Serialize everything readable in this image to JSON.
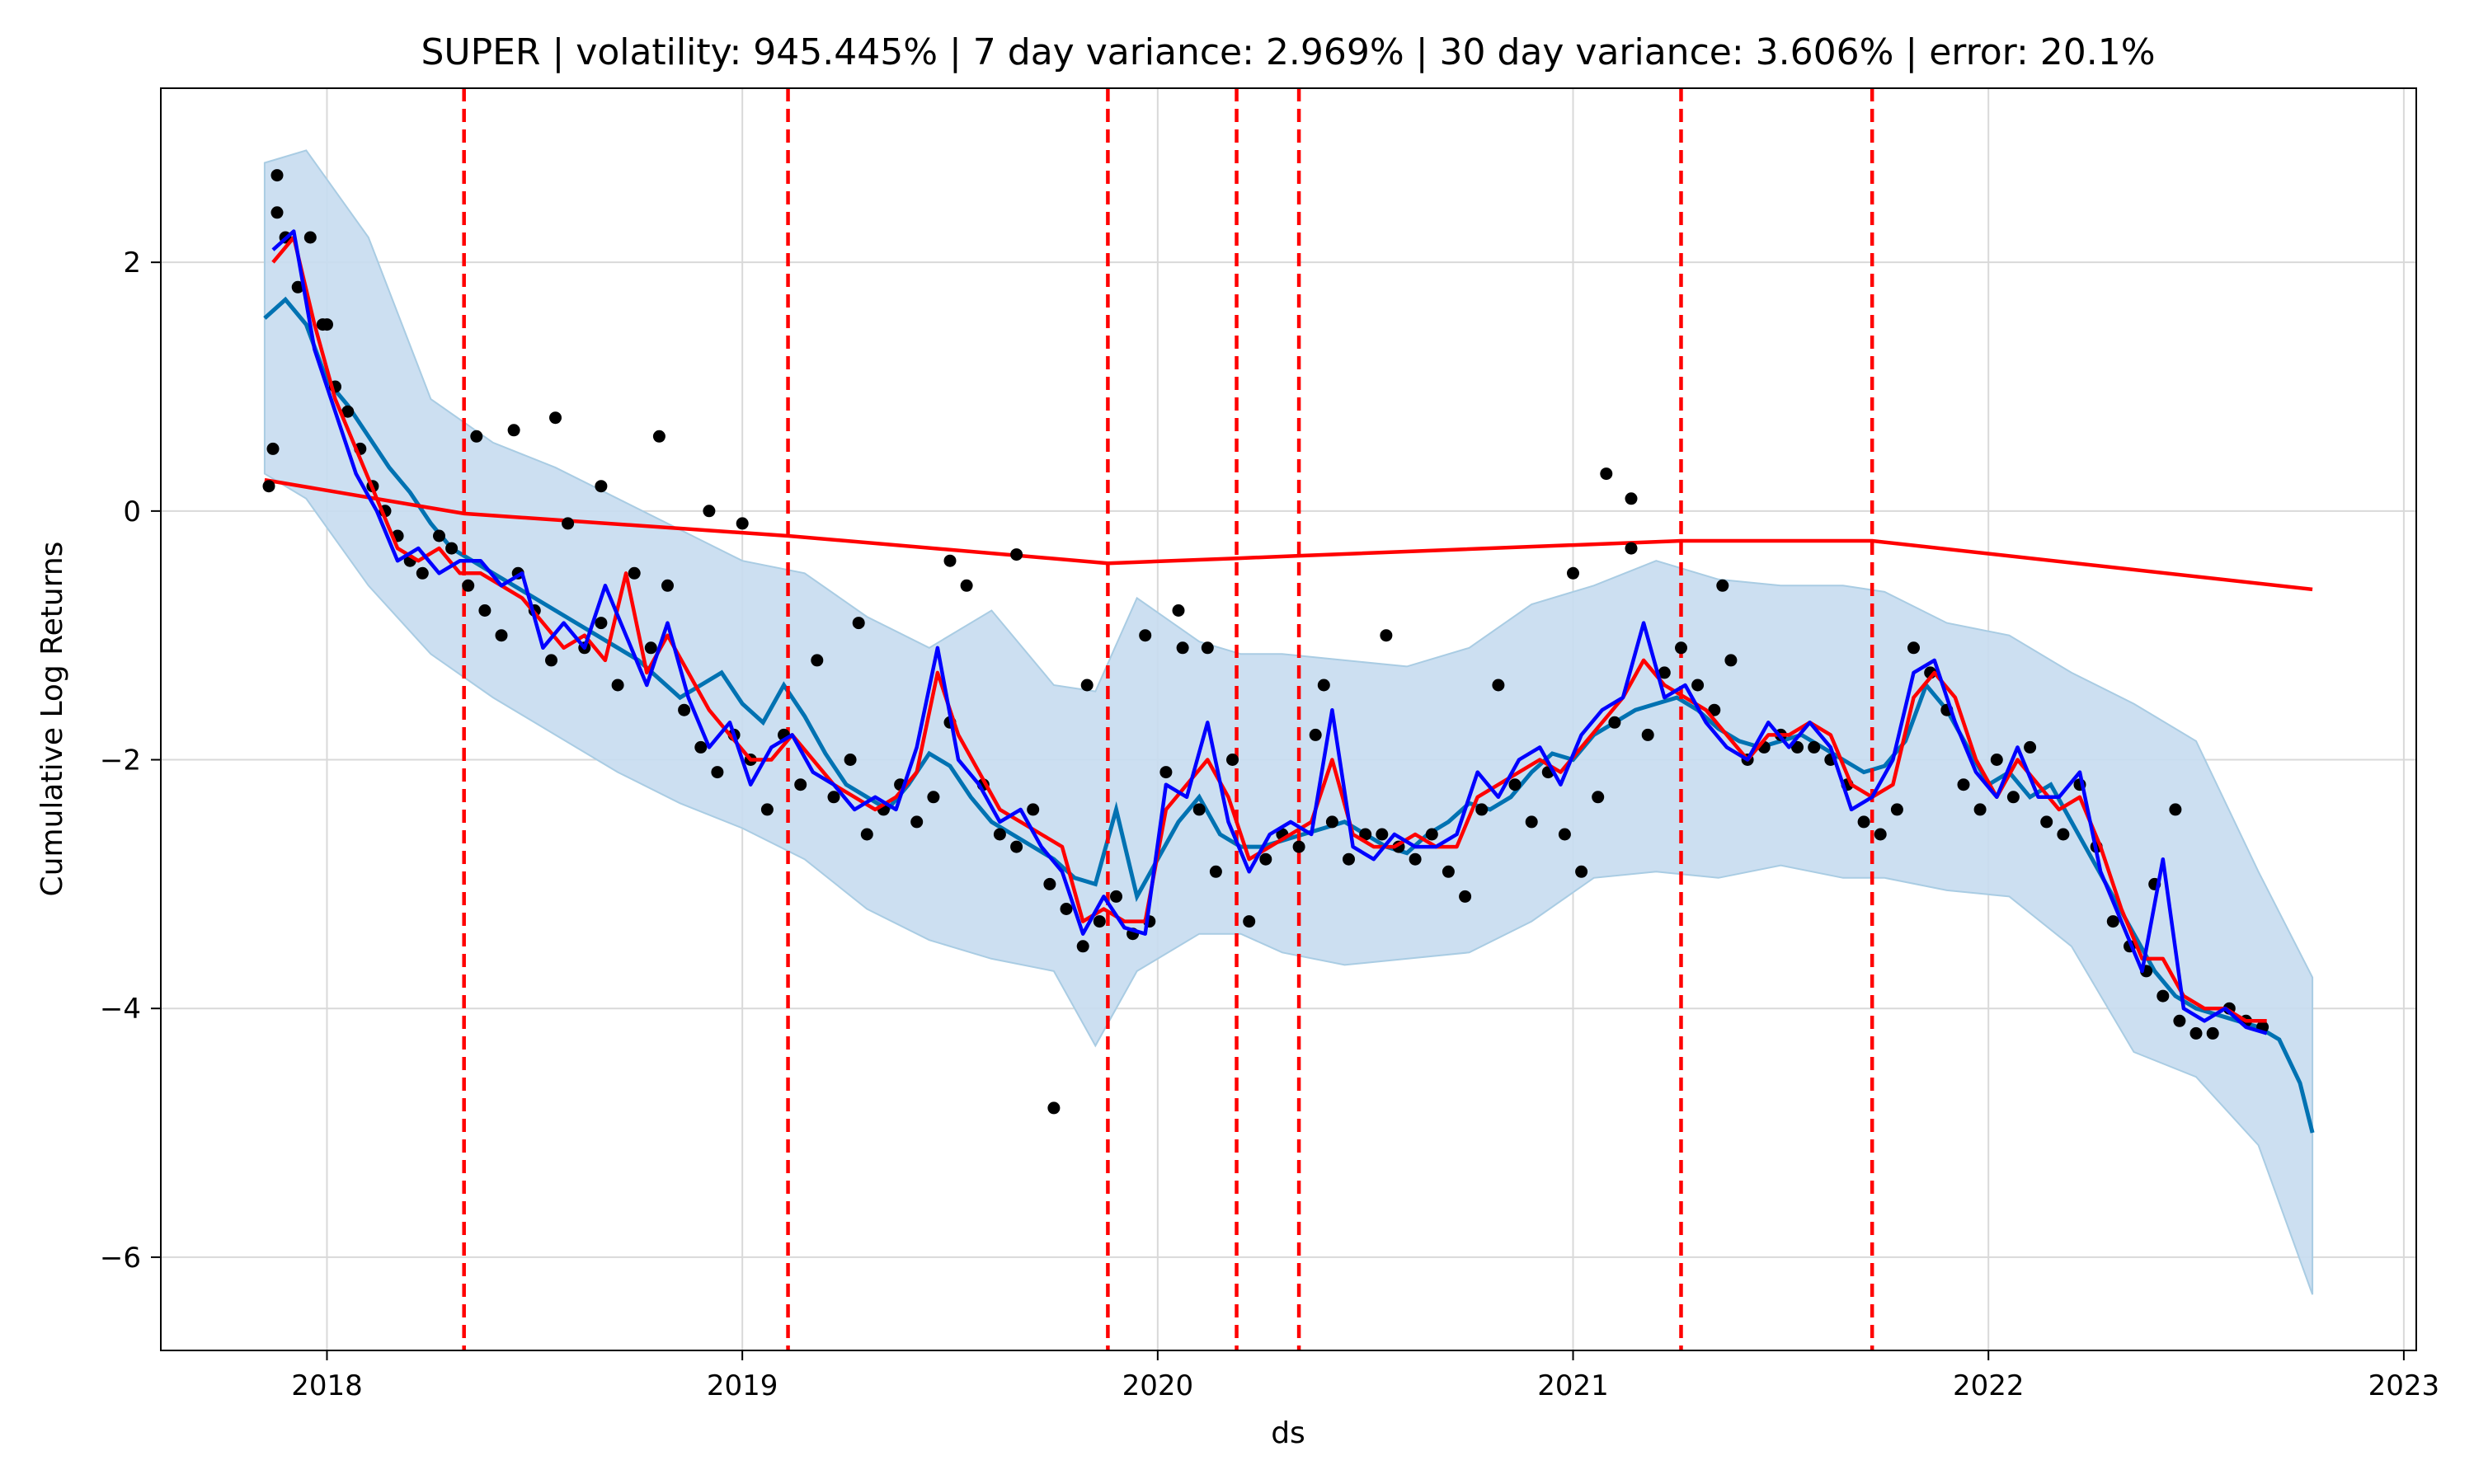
{
  "chart_data": {
    "type": "line",
    "title": "SUPER | volatility: 945.445% | 7 day variance: 2.969% | 30 day variance: 3.606% | error: 20.1%",
    "xlabel": "ds",
    "ylabel": "Cumulative Log Returns",
    "xlim": [
      2017.6,
      2023.03
    ],
    "ylim": [
      -6.75,
      3.4
    ],
    "x_ticks": [
      2018,
      2019,
      2020,
      2021,
      2022,
      2023
    ],
    "x_tick_labels": [
      "2018",
      "2019",
      "2020",
      "2021",
      "2022",
      "2023"
    ],
    "y_ticks": [
      -6,
      -4,
      -2,
      0,
      2
    ],
    "y_tick_labels": [
      "−6",
      "−4",
      "−2",
      "0",
      "2"
    ],
    "grid": true,
    "colors": {
      "band": "#c6dbef",
      "band_edge": "#a9cce3",
      "forecast": "#0072b2",
      "trend": "#ff0000",
      "ma_red": "#ff0000",
      "ma_blue": "#0000ff",
      "observed": "#000000",
      "changepoint": "#ff0000"
    },
    "changepoints": [
      2018.33,
      2019.11,
      2019.88,
      2020.19,
      2020.34,
      2021.26,
      2021.72
    ],
    "trend": {
      "x": [
        2017.85,
        2018.33,
        2019.11,
        2019.88,
        2020.19,
        2020.34,
        2021.26,
        2021.72,
        2022.78
      ],
      "y": [
        0.25,
        -0.02,
        -0.2,
        -0.42,
        -0.38,
        -0.36,
        -0.24,
        -0.24,
        -0.63
      ]
    },
    "forecast": {
      "x": [
        2017.85,
        2017.9,
        2017.95,
        2018.0,
        2018.05,
        2018.1,
        2018.15,
        2018.2,
        2018.25,
        2018.3,
        2018.35,
        2018.4,
        2018.45,
        2018.5,
        2018.55,
        2018.6,
        2018.65,
        2018.7,
        2018.75,
        2018.8,
        2018.85,
        2018.9,
        2018.95,
        2019.0,
        2019.05,
        2019.1,
        2019.15,
        2019.2,
        2019.25,
        2019.3,
        2019.35,
        2019.4,
        2019.45,
        2019.5,
        2019.55,
        2019.6,
        2019.65,
        2019.7,
        2019.75,
        2019.8,
        2019.85,
        2019.9,
        2019.95,
        2020.0,
        2020.05,
        2020.1,
        2020.15,
        2020.2,
        2020.25,
        2020.3,
        2020.35,
        2020.4,
        2020.45,
        2020.5,
        2020.55,
        2020.6,
        2020.65,
        2020.7,
        2020.75,
        2020.8,
        2020.85,
        2020.9,
        2020.95,
        2021.0,
        2021.05,
        2021.1,
        2021.15,
        2021.2,
        2021.25,
        2021.3,
        2021.35,
        2021.4,
        2021.45,
        2021.5,
        2021.55,
        2021.6,
        2021.65,
        2021.7,
        2021.75,
        2021.8,
        2021.85,
        2021.9,
        2021.95,
        2022.0,
        2022.05,
        2022.1,
        2022.15,
        2022.2,
        2022.25,
        2022.3,
        2022.35,
        2022.4,
        2022.45,
        2022.5,
        2022.55,
        2022.6,
        2022.65,
        2022.7,
        2022.75,
        2022.78
      ],
      "y": [
        1.55,
        1.7,
        1.5,
        1.05,
        0.85,
        0.6,
        0.35,
        0.15,
        -0.1,
        -0.3,
        -0.4,
        -0.5,
        -0.6,
        -0.7,
        -0.8,
        -0.9,
        -1.0,
        -1.1,
        -1.2,
        -1.35,
        -1.5,
        -1.4,
        -1.3,
        -1.55,
        -1.7,
        -1.4,
        -1.65,
        -1.95,
        -2.2,
        -2.3,
        -2.4,
        -2.2,
        -1.95,
        -2.05,
        -2.3,
        -2.5,
        -2.6,
        -2.7,
        -2.8,
        -2.95,
        -3.0,
        -2.4,
        -3.1,
        -2.8,
        -2.5,
        -2.3,
        -2.6,
        -2.7,
        -2.7,
        -2.65,
        -2.6,
        -2.55,
        -2.5,
        -2.6,
        -2.7,
        -2.75,
        -2.6,
        -2.5,
        -2.35,
        -2.4,
        -2.3,
        -2.1,
        -1.95,
        -2.0,
        -1.8,
        -1.7,
        -1.6,
        -1.55,
        -1.5,
        -1.6,
        -1.75,
        -1.85,
        -1.9,
        -1.85,
        -1.8,
        -1.9,
        -2.0,
        -2.1,
        -2.05,
        -1.85,
        -1.4,
        -1.6,
        -1.9,
        -2.2,
        -2.1,
        -2.3,
        -2.2,
        -2.5,
        -2.8,
        -3.1,
        -3.4,
        -3.7,
        -3.9,
        -4.0,
        -4.05,
        -4.1,
        -4.15,
        -4.25,
        -4.6,
        -5.0
      ]
    },
    "band": {
      "x": [
        2017.85,
        2017.95,
        2018.1,
        2018.25,
        2018.4,
        2018.55,
        2018.7,
        2018.85,
        2019.0,
        2019.15,
        2019.3,
        2019.45,
        2019.6,
        2019.75,
        2019.85,
        2019.95,
        2020.1,
        2020.2,
        2020.3,
        2020.45,
        2020.6,
        2020.75,
        2020.9,
        2021.05,
        2021.2,
        2021.35,
        2021.5,
        2021.65,
        2021.75,
        2021.9,
        2022.05,
        2022.2,
        2022.35,
        2022.5,
        2022.65,
        2022.78
      ],
      "upper": [
        2.8,
        2.9,
        2.2,
        0.9,
        0.55,
        0.35,
        0.1,
        -0.15,
        -0.4,
        -0.5,
        -0.85,
        -1.1,
        -0.8,
        -1.4,
        -1.45,
        -0.7,
        -1.05,
        -1.15,
        -1.15,
        -1.2,
        -1.25,
        -1.1,
        -0.75,
        -0.6,
        -0.4,
        -0.55,
        -0.6,
        -0.6,
        -0.65,
        -0.9,
        -1.0,
        -1.3,
        -1.55,
        -1.85,
        -2.9,
        -3.75
      ],
      "lower": [
        0.3,
        0.1,
        -0.6,
        -1.15,
        -1.5,
        -1.8,
        -2.1,
        -2.35,
        -2.55,
        -2.8,
        -3.2,
        -3.45,
        -3.6,
        -3.7,
        -4.3,
        -3.7,
        -3.4,
        -3.4,
        -3.55,
        -3.65,
        -3.6,
        -3.55,
        -3.3,
        -2.95,
        -2.9,
        -2.95,
        -2.85,
        -2.95,
        -2.95,
        -3.05,
        -3.1,
        -3.5,
        -4.35,
        -4.55,
        -5.1,
        -6.3
      ]
    },
    "series": [
      {
        "name": "",
        "x": [
          2017.87,
          2017.92,
          2017.97,
          2018.02,
          2018.07,
          2018.12,
          2018.17,
          2018.22,
          2018.27,
          2018.32,
          2018.37,
          2018.42,
          2018.47,
          2018.52,
          2018.57,
          2018.62,
          2018.67,
          2018.72,
          2018.77,
          2018.82,
          2018.87,
          2018.92,
          2018.97,
          2019.02,
          2019.07,
          2019.12,
          2019.17,
          2019.22,
          2019.27,
          2019.32,
          2019.37,
          2019.42,
          2019.47,
          2019.52,
          2019.57,
          2019.62,
          2019.67,
          2019.72,
          2019.77,
          2019.82,
          2019.87,
          2019.92,
          2019.97,
          2020.02,
          2020.07,
          2020.12,
          2020.17,
          2020.22,
          2020.27,
          2020.32,
          2020.37,
          2020.42,
          2020.47,
          2020.52,
          2020.57,
          2020.62,
          2020.67,
          2020.72,
          2020.77,
          2020.82,
          2020.87,
          2020.92,
          2020.97,
          2021.02,
          2021.07,
          2021.12,
          2021.17,
          2021.22,
          2021.27,
          2021.32,
          2021.37,
          2021.42,
          2021.47,
          2021.52,
          2021.57,
          2021.62,
          2021.67,
          2021.72,
          2021.77,
          2021.82,
          2021.87,
          2021.92,
          2021.97,
          2022.02,
          2022.07,
          2022.12,
          2022.17,
          2022.22,
          2022.27,
          2022.32,
          2022.37,
          2022.42,
          2022.47,
          2022.52,
          2022.57,
          2022.62,
          2022.67
        ],
        "y": [
          2.0,
          2.2,
          1.5,
          0.9,
          0.5,
          0.1,
          -0.3,
          -0.4,
          -0.3,
          -0.5,
          -0.5,
          -0.6,
          -0.7,
          -0.9,
          -1.1,
          -1.0,
          -1.2,
          -0.5,
          -1.3,
          -1.0,
          -1.3,
          -1.6,
          -1.8,
          -2.0,
          -2.0,
          -1.8,
          -2.0,
          -2.2,
          -2.3,
          -2.4,
          -2.3,
          -2.1,
          -1.3,
          -1.8,
          -2.1,
          -2.4,
          -2.5,
          -2.6,
          -2.7,
          -3.3,
          -3.2,
          -3.3,
          -3.3,
          -2.4,
          -2.2,
          -2.0,
          -2.3,
          -2.8,
          -2.7,
          -2.6,
          -2.5,
          -2.0,
          -2.6,
          -2.7,
          -2.7,
          -2.6,
          -2.7,
          -2.7,
          -2.3,
          -2.2,
          -2.1,
          -2.0,
          -2.1,
          -1.9,
          -1.7,
          -1.5,
          -1.2,
          -1.4,
          -1.5,
          -1.6,
          -1.8,
          -2.0,
          -1.8,
          -1.8,
          -1.7,
          -1.8,
          -2.2,
          -2.3,
          -2.2,
          -1.5,
          -1.3,
          -1.5,
          -2.0,
          -2.3,
          -2.0,
          -2.2,
          -2.4,
          -2.3,
          -2.7,
          -3.2,
          -3.6,
          -3.6,
          -3.9,
          -4.0,
          -4.0,
          -4.1,
          -4.1
        ]
      },
      {
        "name": "",
        "x": [
          2017.87,
          2017.92,
          2017.97,
          2018.02,
          2018.07,
          2018.12,
          2018.17,
          2018.22,
          2018.27,
          2018.32,
          2018.37,
          2018.42,
          2018.47,
          2018.52,
          2018.57,
          2018.62,
          2018.67,
          2018.72,
          2018.77,
          2018.82,
          2018.87,
          2018.92,
          2018.97,
          2019.02,
          2019.07,
          2019.12,
          2019.17,
          2019.22,
          2019.27,
          2019.32,
          2019.37,
          2019.42,
          2019.47,
          2019.52,
          2019.57,
          2019.62,
          2019.67,
          2019.72,
          2019.77,
          2019.82,
          2019.87,
          2019.92,
          2019.97,
          2020.02,
          2020.07,
          2020.12,
          2020.17,
          2020.22,
          2020.27,
          2020.32,
          2020.37,
          2020.42,
          2020.47,
          2020.52,
          2020.57,
          2020.62,
          2020.67,
          2020.72,
          2020.77,
          2020.82,
          2020.87,
          2020.92,
          2020.97,
          2021.02,
          2021.07,
          2021.12,
          2021.17,
          2021.22,
          2021.27,
          2021.32,
          2021.37,
          2021.42,
          2021.47,
          2021.52,
          2021.57,
          2021.62,
          2021.67,
          2021.72,
          2021.77,
          2021.82,
          2021.87,
          2021.92,
          2021.97,
          2022.02,
          2022.07,
          2022.12,
          2022.17,
          2022.22,
          2022.27,
          2022.32,
          2022.37,
          2022.42,
          2022.47,
          2022.52,
          2022.57,
          2022.62,
          2022.67
        ],
        "y": [
          2.1,
          2.25,
          1.3,
          0.8,
          0.3,
          0.0,
          -0.4,
          -0.3,
          -0.5,
          -0.4,
          -0.4,
          -0.6,
          -0.5,
          -1.1,
          -0.9,
          -1.1,
          -0.6,
          -1.0,
          -1.4,
          -0.9,
          -1.5,
          -1.9,
          -1.7,
          -2.2,
          -1.9,
          -1.8,
          -2.1,
          -2.2,
          -2.4,
          -2.3,
          -2.4,
          -1.9,
          -1.1,
          -2.0,
          -2.2,
          -2.5,
          -2.4,
          -2.7,
          -2.9,
          -3.4,
          -3.1,
          -3.35,
          -3.4,
          -2.2,
          -2.3,
          -1.7,
          -2.5,
          -2.9,
          -2.6,
          -2.5,
          -2.6,
          -1.6,
          -2.7,
          -2.8,
          -2.6,
          -2.7,
          -2.7,
          -2.6,
          -2.1,
          -2.3,
          -2.0,
          -1.9,
          -2.2,
          -1.8,
          -1.6,
          -1.5,
          -0.9,
          -1.5,
          -1.4,
          -1.7,
          -1.9,
          -2.0,
          -1.7,
          -1.9,
          -1.7,
          -1.9,
          -2.4,
          -2.3,
          -2.0,
          -1.3,
          -1.2,
          -1.7,
          -2.1,
          -2.3,
          -1.9,
          -2.3,
          -2.3,
          -2.1,
          -2.9,
          -3.3,
          -3.7,
          -2.8,
          -4.0,
          -4.1,
          -4.0,
          -4.15,
          -4.2
        ]
      }
    ],
    "observed": {
      "x": [
        2017.86,
        2017.88,
        2017.9,
        2017.93,
        2017.96,
        2017.99,
        2018.02,
        2018.05,
        2018.08,
        2018.11,
        2018.14,
        2018.17,
        2018.2,
        2018.23,
        2018.27,
        2018.3,
        2018.34,
        2018.38,
        2018.42,
        2018.46,
        2018.5,
        2018.54,
        2018.58,
        2018.62,
        2018.66,
        2018.7,
        2018.74,
        2018.78,
        2018.82,
        2018.86,
        2018.9,
        2018.94,
        2018.98,
        2019.02,
        2019.06,
        2019.1,
        2019.14,
        2019.18,
        2019.22,
        2019.26,
        2019.3,
        2019.34,
        2019.38,
        2019.42,
        2019.46,
        2019.5,
        2019.54,
        2019.58,
        2019.62,
        2019.66,
        2019.7,
        2019.74,
        2019.78,
        2019.82,
        2019.86,
        2019.9,
        2019.94,
        2019.98,
        2020.02,
        2020.06,
        2020.1,
        2020.14,
        2020.18,
        2020.22,
        2020.26,
        2020.3,
        2020.34,
        2020.38,
        2020.42,
        2020.46,
        2020.5,
        2020.54,
        2020.58,
        2020.62,
        2020.66,
        2020.7,
        2020.74,
        2020.78,
        2020.82,
        2020.86,
        2020.9,
        2020.94,
        2020.98,
        2021.02,
        2021.06,
        2021.1,
        2021.14,
        2021.18,
        2021.22,
        2021.26,
        2021.3,
        2021.34,
        2021.38,
        2021.42,
        2021.46,
        2021.5,
        2021.54,
        2021.58,
        2021.62,
        2021.66,
        2021.7,
        2021.74,
        2021.78,
        2021.82,
        2021.86,
        2021.9,
        2021.94,
        2021.98,
        2022.02,
        2022.06,
        2022.1,
        2022.14,
        2022.18,
        2022.22,
        2022.26,
        2022.3,
        2022.34,
        2022.38,
        2022.42,
        2022.46,
        2022.5,
        2022.54,
        2022.58,
        2022.62,
        2022.66,
        2017.87,
        2017.88,
        2018.0,
        2018.36,
        2018.55,
        2018.66,
        2018.8,
        2018.92,
        2019.0,
        2019.5,
        2019.66,
        2019.75,
        2019.83,
        2019.97,
        2020.05,
        2020.12,
        2020.4,
        2020.55,
        2021.0,
        2021.08,
        2021.14,
        2021.36,
        2022.4,
        2022.45,
        2018.45,
        2019.28
      ],
      "y": [
        0.2,
        2.4,
        2.2,
        1.8,
        2.2,
        1.5,
        1.0,
        0.8,
        0.5,
        0.2,
        0.0,
        -0.2,
        -0.4,
        -0.5,
        -0.2,
        -0.3,
        -0.6,
        -0.8,
        -1.0,
        -0.5,
        -0.8,
        -1.2,
        -0.1,
        -1.1,
        -0.9,
        -1.4,
        -0.5,
        -1.1,
        -0.6,
        -1.6,
        -1.9,
        -2.1,
        -1.8,
        -2.0,
        -2.4,
        -1.8,
        -2.2,
        -1.2,
        -2.3,
        -2.0,
        -2.6,
        -2.4,
        -2.2,
        -2.5,
        -2.3,
        -1.7,
        -0.6,
        -2.2,
        -2.6,
        -2.7,
        -2.4,
        -3.0,
        -3.2,
        -3.5,
        -3.3,
        -3.1,
        -3.4,
        -3.3,
        -2.1,
        -1.1,
        -2.4,
        -2.9,
        -2.0,
        -3.3,
        -2.8,
        -2.6,
        -2.7,
        -1.8,
        -2.5,
        -2.8,
        -2.6,
        -2.6,
        -2.7,
        -2.8,
        -2.6,
        -2.9,
        -3.1,
        -2.4,
        -1.4,
        -2.2,
        -2.5,
        -2.1,
        -2.6,
        -2.9,
        -2.3,
        -1.7,
        -0.3,
        -1.8,
        -1.3,
        -1.1,
        -1.4,
        -1.6,
        -1.2,
        -2.0,
        -1.9,
        -1.8,
        -1.9,
        -1.9,
        -2.0,
        -2.2,
        -2.5,
        -2.6,
        -2.4,
        -1.1,
        -1.3,
        -1.6,
        -2.2,
        -2.4,
        -2.0,
        -2.3,
        -1.9,
        -2.5,
        -2.6,
        -2.2,
        -2.7,
        -3.3,
        -3.5,
        -3.7,
        -3.9,
        -4.1,
        -4.2,
        -4.2,
        -4.0,
        -4.1,
        -4.15,
        0.5,
        2.7,
        1.5,
        0.6,
        0.75,
        0.2,
        0.6,
        0.0,
        -0.1,
        -0.4,
        -0.35,
        -4.8,
        -1.4,
        -1.0,
        -0.8,
        -1.1,
        -1.4,
        -1.0,
        -0.5,
        0.3,
        0.1,
        -0.6,
        -3.0,
        -2.4,
        0.65,
        -0.9
      ]
    }
  }
}
